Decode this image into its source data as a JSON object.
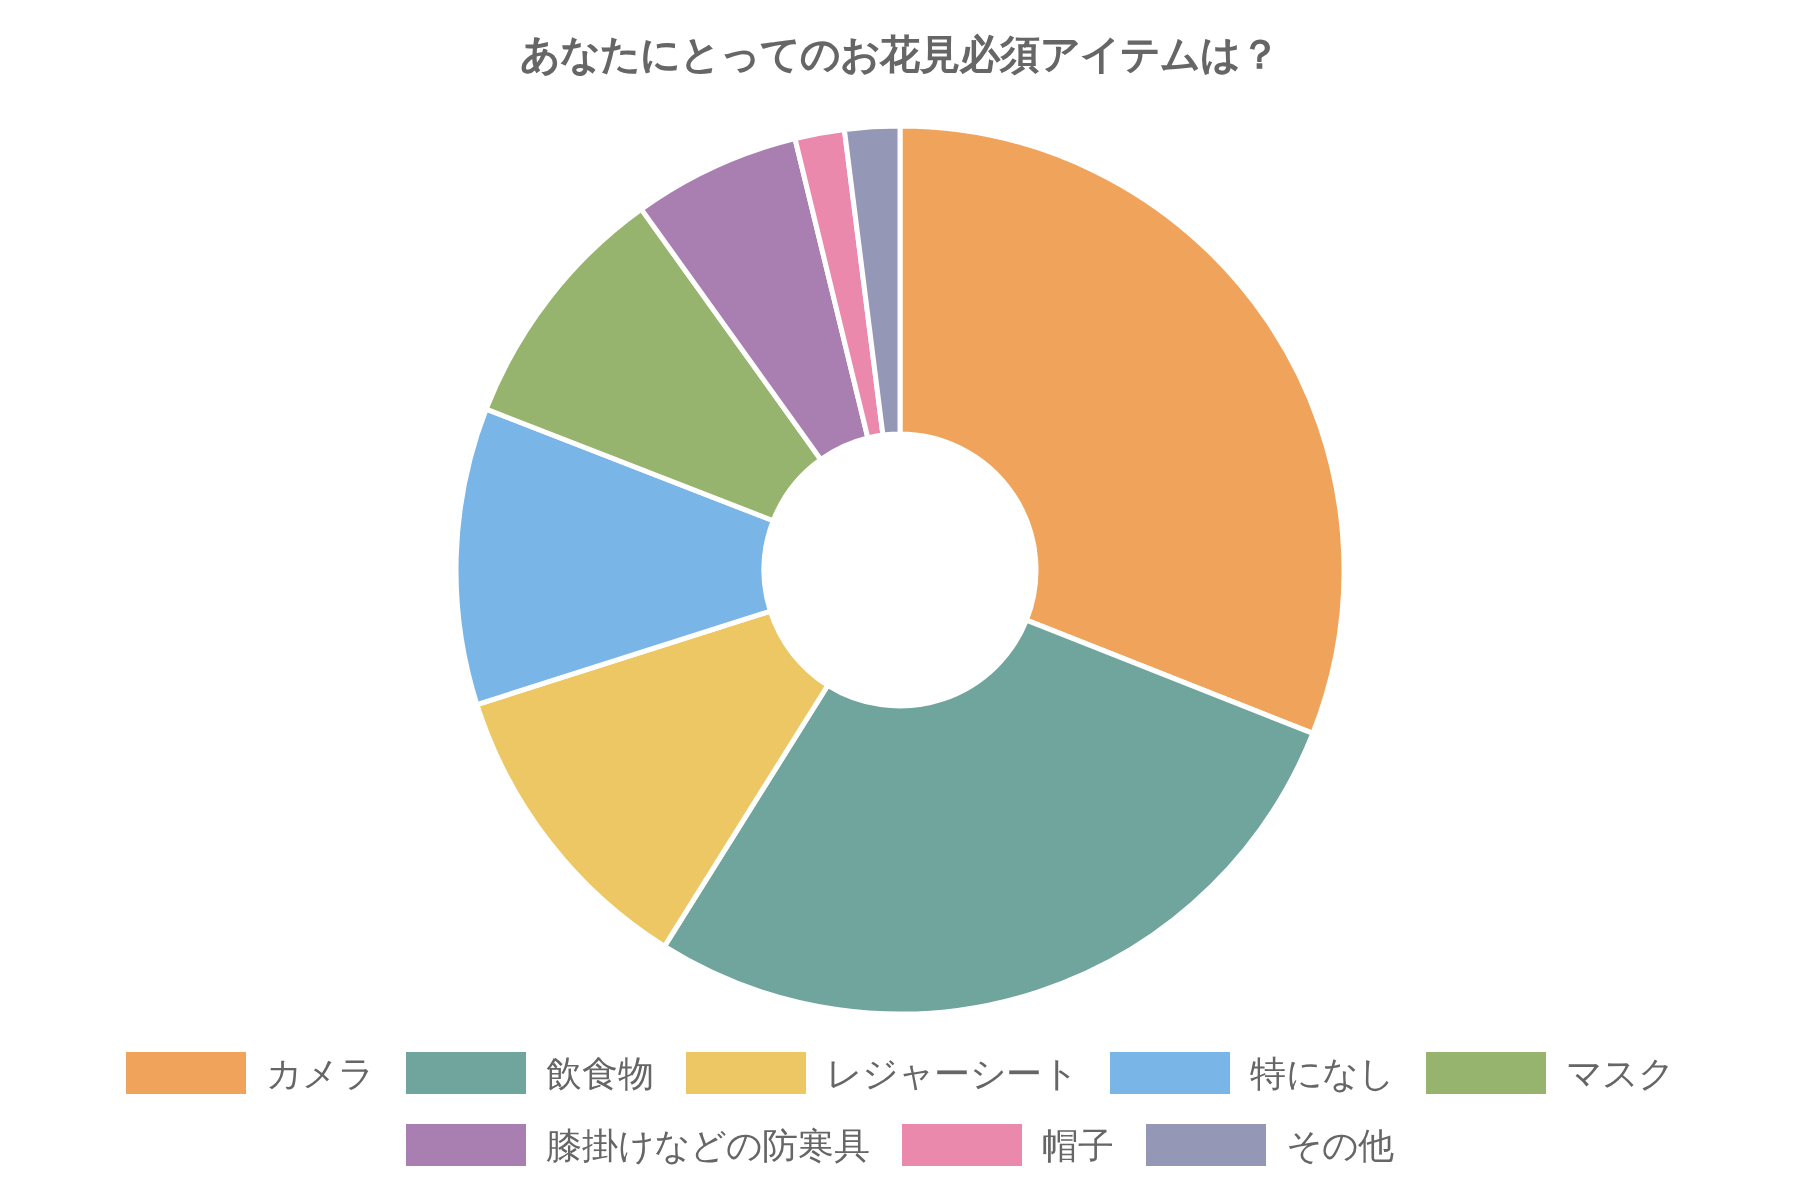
{
  "chart_data": {
    "type": "donut",
    "title": "あなたにとってのお花見必須アイテムは？",
    "categories": [
      "カメラ",
      "飲食物",
      "レジャーシート",
      "特になし",
      "マスク",
      "膝掛けなどの防寒具",
      "帽子",
      "その他"
    ],
    "values": [
      31.0,
      27.9,
      11.2,
      10.8,
      9.2,
      6.1,
      1.8,
      2.0
    ],
    "colors": [
      "#f0a35a",
      "#70a59e",
      "#ecc764",
      "#79b5e6",
      "#97b46f",
      "#a87fb0",
      "#eb89ad",
      "#9497b5"
    ],
    "legend": "bottom"
  }
}
